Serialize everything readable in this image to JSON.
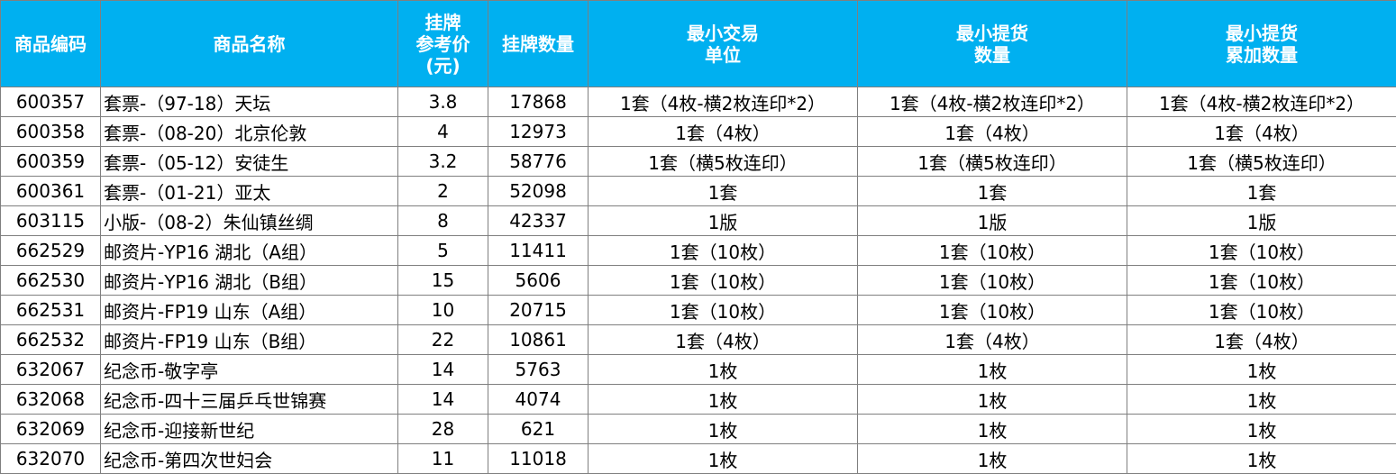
{
  "headers": {
    "code": "商品编码",
    "name": "商品名称",
    "price": "挂牌\n参考价\n(元)",
    "qty": "挂牌数量",
    "min_trade": "最小交易\n单位",
    "min_pickup": "最小提货\n数量",
    "min_pickup_cum": "最小提货\n累加数量"
  },
  "rows": [
    {
      "code": "600357",
      "name": "套票-（97-18）天坛",
      "price": "3.8",
      "qty": "17868",
      "min_trade": "1套（4枚-横2枚连印*2）",
      "min_pickup": "1套（4枚-横2枚连印*2）",
      "min_pickup_cum": "1套（4枚-横2枚连印*2）"
    },
    {
      "code": "600358",
      "name": "套票-（08-20）北京伦敦",
      "price": "4",
      "qty": "12973",
      "min_trade": "1套（4枚）",
      "min_pickup": "1套（4枚）",
      "min_pickup_cum": "1套（4枚）"
    },
    {
      "code": "600359",
      "name": "套票-（05-12）安徒生",
      "price": "3.2",
      "qty": "58776",
      "min_trade": "1套（横5枚连印）",
      "min_pickup": "1套（横5枚连印）",
      "min_pickup_cum": "1套（横5枚连印）"
    },
    {
      "code": "600361",
      "name": "套票-（01-21）亚太",
      "price": "2",
      "qty": "52098",
      "min_trade": "1套",
      "min_pickup": "1套",
      "min_pickup_cum": "1套"
    },
    {
      "code": "603115",
      "name": "小版-（08-2）朱仙镇丝绸",
      "price": "8",
      "qty": "42337",
      "min_trade": "1版",
      "min_pickup": "1版",
      "min_pickup_cum": "1版"
    },
    {
      "code": "662529",
      "name": "邮资片-YP16 湖北（A组）",
      "price": "5",
      "qty": "11411",
      "min_trade": "1套（10枚）",
      "min_pickup": "1套（10枚）",
      "min_pickup_cum": "1套（10枚）"
    },
    {
      "code": "662530",
      "name": "邮资片-YP16 湖北（B组）",
      "price": "15",
      "qty": "5606",
      "min_trade": "1套（10枚）",
      "min_pickup": "1套（10枚）",
      "min_pickup_cum": "1套（10枚）"
    },
    {
      "code": "662531",
      "name": "邮资片-FP19 山东（A组）",
      "price": "10",
      "qty": "20715",
      "min_trade": "1套（10枚）",
      "min_pickup": "1套（10枚）",
      "min_pickup_cum": "1套（10枚）"
    },
    {
      "code": "662532",
      "name": "邮资片-FP19 山东（B组）",
      "price": "22",
      "qty": "10861",
      "min_trade": "1套（4枚）",
      "min_pickup": "1套（4枚）",
      "min_pickup_cum": "1套（4枚）"
    },
    {
      "code": "632067",
      "name": "纪念币-敬字亭",
      "price": "14",
      "qty": "5763",
      "min_trade": "1枚",
      "min_pickup": "1枚",
      "min_pickup_cum": "1枚"
    },
    {
      "code": "632068",
      "name": "纪念币-四十三届乒乓世锦赛",
      "price": "14",
      "qty": "4074",
      "min_trade": "1枚",
      "min_pickup": "1枚",
      "min_pickup_cum": "1枚"
    },
    {
      "code": "632069",
      "name": "纪念币-迎接新世纪",
      "price": "28",
      "qty": "621",
      "min_trade": "1枚",
      "min_pickup": "1枚",
      "min_pickup_cum": "1枚"
    },
    {
      "code": "632070",
      "name": "纪念币-第四次世妇会",
      "price": "11",
      "qty": "11018",
      "min_trade": "1枚",
      "min_pickup": "1枚",
      "min_pickup_cum": "1枚"
    }
  ],
  "colors": {
    "header_bg": "#00B0F0",
    "header_text": "#FFFFFF",
    "border": "#7F7F7F"
  }
}
